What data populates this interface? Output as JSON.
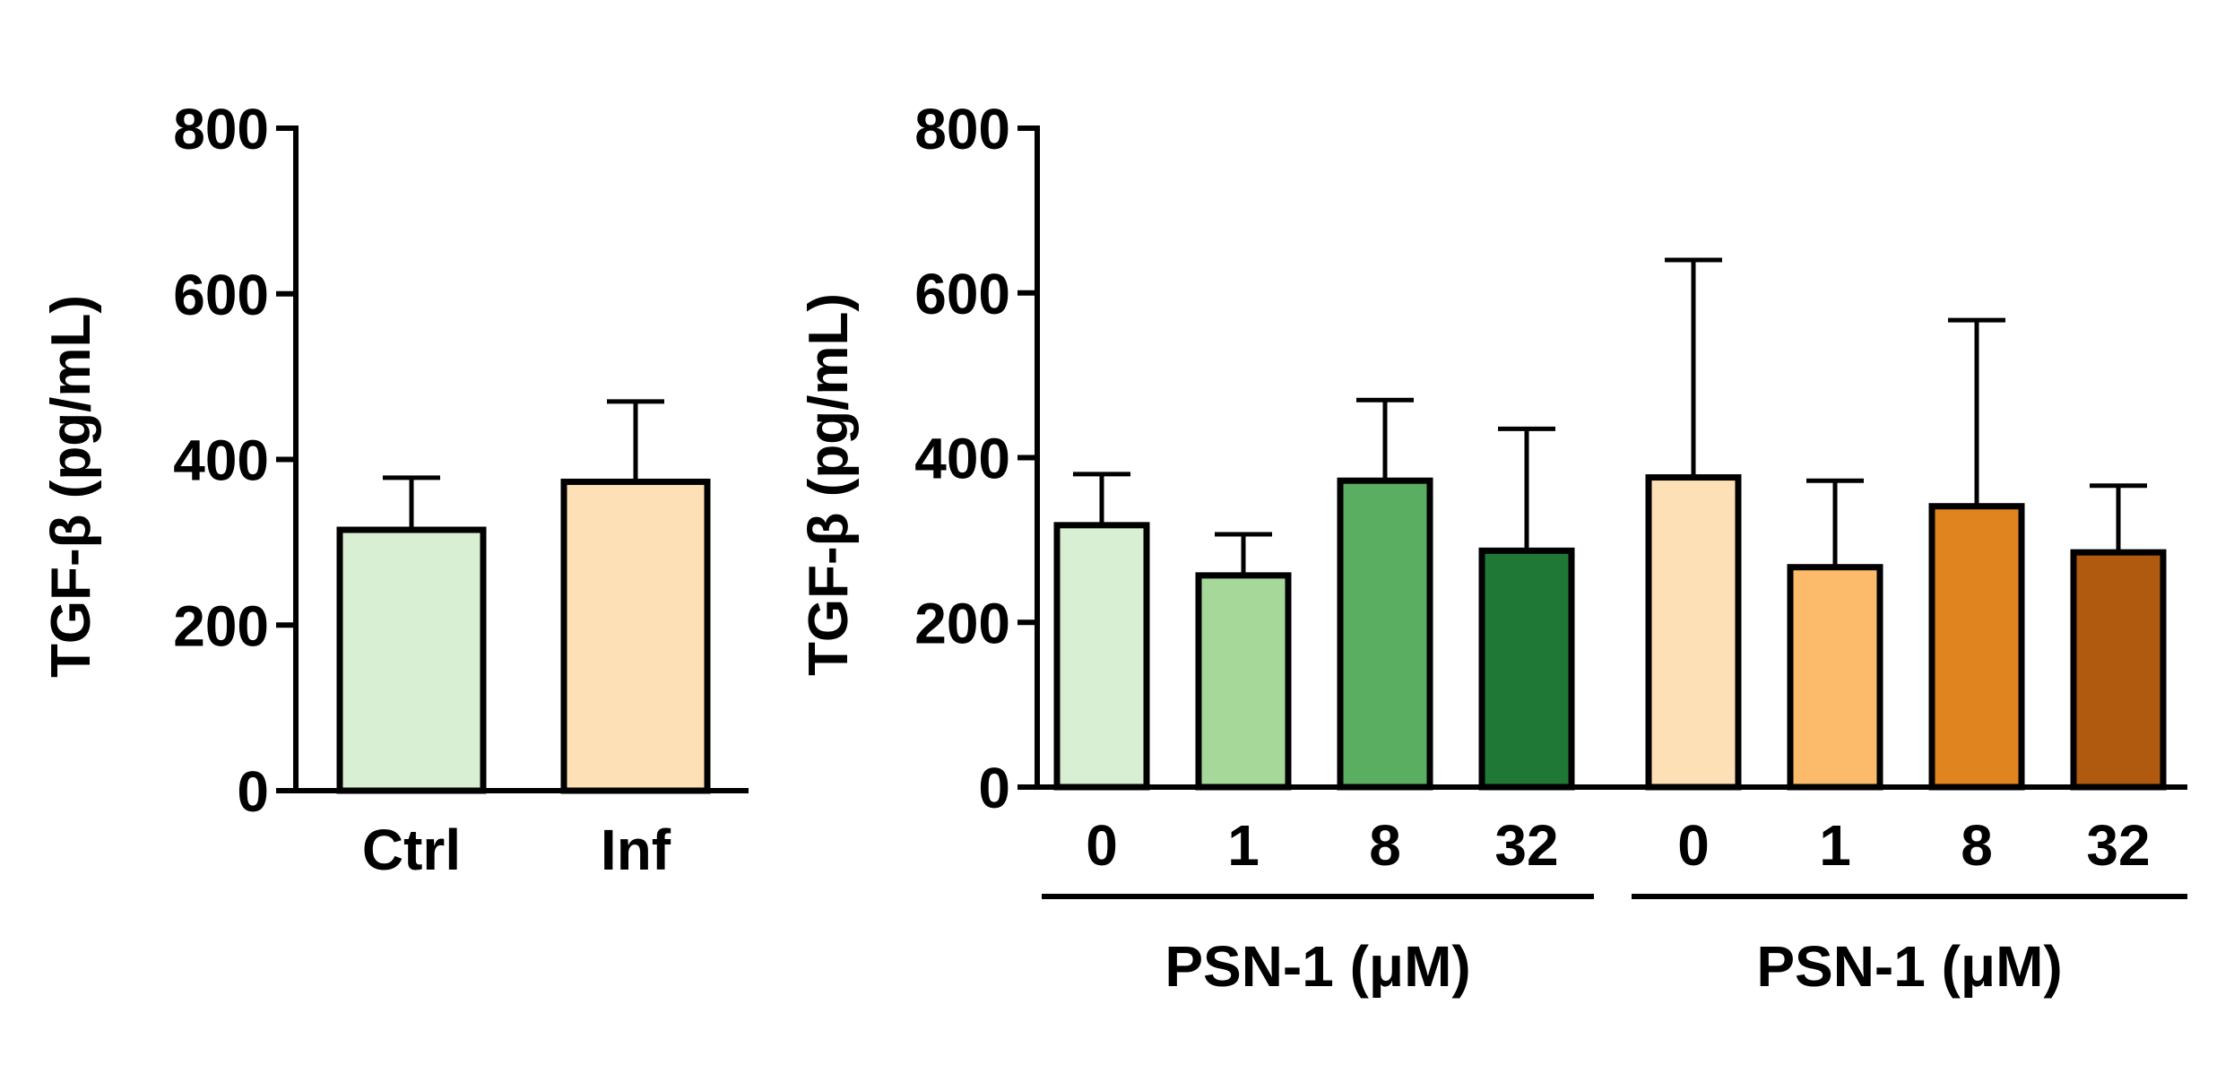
{
  "chart_data": [
    {
      "type": "bar",
      "ylabel": "TGF-β (pg/mL)",
      "ylim": [
        0,
        800
      ],
      "yticks": [
        0,
        200,
        400,
        600,
        800
      ],
      "categories": [
        "Ctrl",
        "Inf"
      ],
      "values": [
        315,
        373
      ],
      "errors": [
        63,
        97
      ],
      "colors": [
        "#d9efd3",
        "#fde0b5"
      ],
      "groups": []
    },
    {
      "type": "bar",
      "ylabel": "TGF-β (pg/mL)",
      "ylim": [
        0,
        800
      ],
      "yticks": [
        0,
        200,
        400,
        600,
        800
      ],
      "categories": [
        "0",
        "1",
        "8",
        "32",
        "0",
        "1",
        "8",
        "32"
      ],
      "values": [
        318,
        257,
        372,
        287,
        376,
        267,
        341,
        285
      ],
      "errors": [
        62,
        50,
        98,
        148,
        264,
        105,
        226,
        81
      ],
      "colors": [
        "#d9efd3",
        "#a6d899",
        "#5aae61",
        "#1f7836",
        "#fde0b5",
        "#fcbb6a",
        "#e0841f",
        "#b05a10"
      ],
      "groups": [
        {
          "label": "PSN-1 (μM)",
          "start": 0,
          "end": 3
        },
        {
          "label": "PSN-1 (μM)",
          "start": 4,
          "end": 7
        }
      ]
    }
  ]
}
